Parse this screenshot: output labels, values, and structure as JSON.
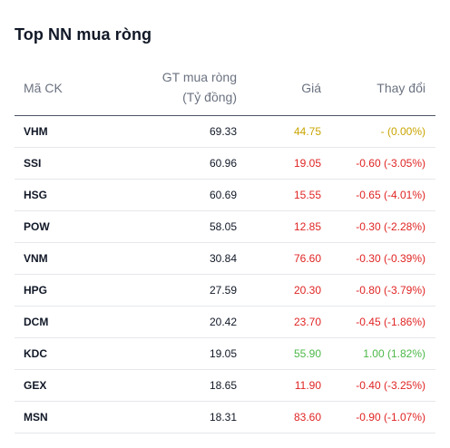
{
  "title": "Top NN mua ròng",
  "headers": {
    "code": "Mã CK",
    "gt_line1": "GT mua ròng",
    "gt_line2": "(Tỷ đồng)",
    "price": "Giá",
    "change": "Thay đổi"
  },
  "colors": {
    "reference": "#c9a400",
    "down": "#e02424",
    "up": "#4cb848"
  },
  "rows": [
    {
      "code": "VHM",
      "value": "69.33",
      "price": "44.75",
      "change": "- (0.00%)",
      "trend": "ref"
    },
    {
      "code": "SSI",
      "value": "60.96",
      "price": "19.05",
      "change": "-0.60 (-3.05%)",
      "trend": "down"
    },
    {
      "code": "HSG",
      "value": "60.69",
      "price": "15.55",
      "change": "-0.65 (-4.01%)",
      "trend": "down"
    },
    {
      "code": "POW",
      "value": "58.05",
      "price": "12.85",
      "change": "-0.30 (-2.28%)",
      "trend": "down"
    },
    {
      "code": "VNM",
      "value": "30.84",
      "price": "76.60",
      "change": "-0.30 (-0.39%)",
      "trend": "down"
    },
    {
      "code": "HPG",
      "value": "27.59",
      "price": "20.30",
      "change": "-0.80 (-3.79%)",
      "trend": "down"
    },
    {
      "code": "DCM",
      "value": "20.42",
      "price": "23.70",
      "change": "-0.45 (-1.86%)",
      "trend": "down"
    },
    {
      "code": "KDC",
      "value": "19.05",
      "price": "55.90",
      "change": "1.00 (1.82%)",
      "trend": "up"
    },
    {
      "code": "GEX",
      "value": "18.65",
      "price": "11.90",
      "change": "-0.40 (-3.25%)",
      "trend": "down"
    },
    {
      "code": "MSN",
      "value": "18.31",
      "price": "83.60",
      "change": "-0.90 (-1.07%)",
      "trend": "down"
    }
  ]
}
